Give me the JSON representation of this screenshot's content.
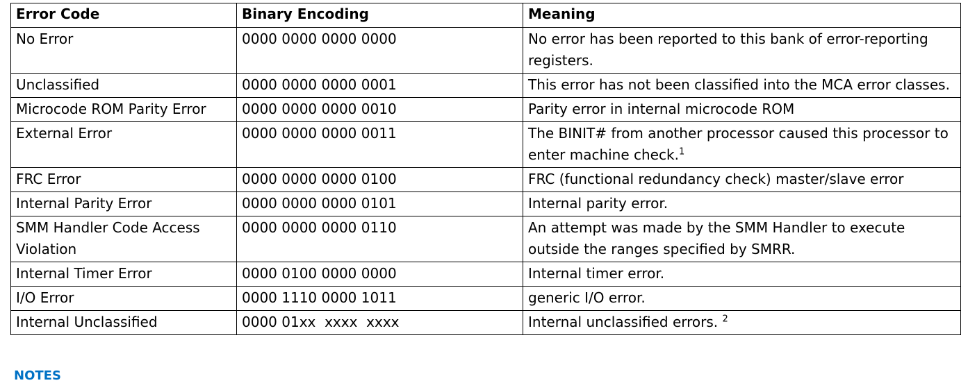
{
  "table": {
    "headers": [
      "Error Code",
      "Binary Encoding",
      "Meaning"
    ],
    "rows": [
      {
        "code": "No Error",
        "binary": "0000 0000 0000 0000",
        "meaning": "No error has been reported to this bank of error-reporting registers.",
        "note": ""
      },
      {
        "code": "Unclassified",
        "binary": "0000 0000 0000 0001",
        "meaning": "This error has not been classified into the MCA error classes.",
        "note": ""
      },
      {
        "code": "Microcode ROM Parity Error",
        "binary": "0000 0000 0000 0010",
        "meaning": "Parity error in internal microcode ROM",
        "note": ""
      },
      {
        "code": "External Error",
        "binary": "0000 0000 0000 0011",
        "meaning": "The BINIT# from another processor caused this processor to enter machine check.",
        "note": "1"
      },
      {
        "code": "FRC Error",
        "binary": "0000 0000 0000 0100",
        "meaning": "FRC (functional redundancy check) master/slave error",
        "note": ""
      },
      {
        "code": "Internal Parity Error",
        "binary": "0000 0000 0000 0101",
        "meaning": "Internal parity error.",
        "note": ""
      },
      {
        "code": "SMM Handler Code Access Violation",
        "binary": "0000 0000 0000 0110",
        "meaning": "An attempt was made by the SMM Handler to execute outside the ranges specified by SMRR.",
        "note": ""
      },
      {
        "code": "Internal Timer Error",
        "binary": "0000 0100 0000 0000",
        "meaning": "Internal timer error.",
        "note": ""
      },
      {
        "code": "I/O Error",
        "binary": "0000 1110 0000 1011",
        "meaning": "generic I/O error.",
        "note": ""
      },
      {
        "code": "Internal Unclassified",
        "binary": "0000 01xx  xxxx  xxxx",
        "meaning": "Internal unclassified errors. ",
        "note": "2"
      }
    ]
  },
  "notes_heading": "NOTES"
}
